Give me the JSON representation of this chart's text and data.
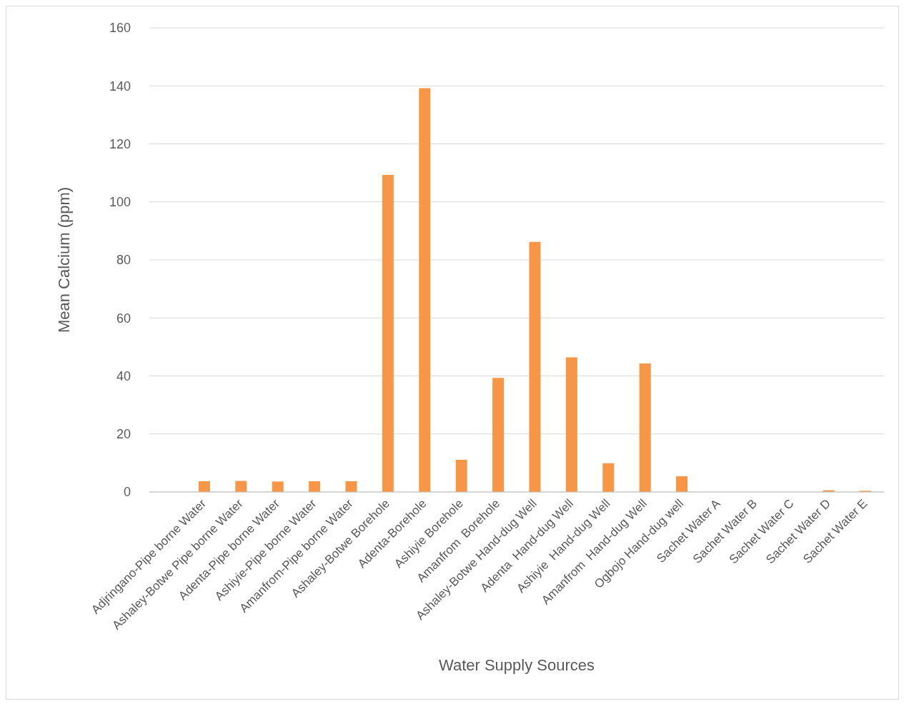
{
  "chart_data": {
    "type": "bar",
    "xlabel": "Water Supply Sources",
    "ylabel": "Mean Calcium (ppm)",
    "categories": [
      null,
      "Adjringano-Pipe borne Water",
      "Ashaley-Botwe Pipe borne Water",
      "Adenta-Pipe borne Water",
      "Ashiyie-Pipe borne Water",
      "Amanfrom-Pipe borne Water",
      "Ashaley-Botwe Borehole",
      "Adenta-Borehole",
      "Ashiyie Borehole",
      "Amanfrom  Borehole",
      "Ashaley-Botwe Hand-dug Well",
      "Adenta  Hand-dug Well",
      "Ashiyie  Hand-dug Well",
      "Amanfrom  Hand-dug Well",
      "Ogbojo Hand-dug well",
      "Sachet Water A",
      "Sachet Water B",
      "Sachet Water C",
      "Sachet Water D",
      "Sachet Water E"
    ],
    "values": [
      null,
      3.7,
      3.8,
      3.6,
      3.7,
      3.7,
      109.3,
      139.2,
      11.1,
      39.3,
      86.2,
      46.4,
      9.9,
      44.3,
      5.4,
      null,
      null,
      null,
      0.6,
      0.4
    ],
    "color": "#f79646",
    "ylim": [
      0,
      160
    ],
    "yticks": [
      0,
      20,
      40,
      60,
      80,
      100,
      120,
      140,
      160
    ],
    "grid": "y"
  }
}
